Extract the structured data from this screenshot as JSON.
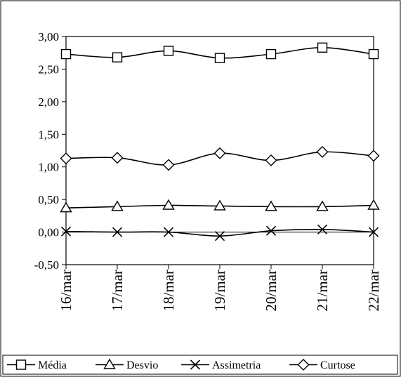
{
  "chart_data": {
    "type": "line",
    "title": "",
    "xlabel": "",
    "ylabel": "",
    "categories": [
      "16/mar",
      "17/mar",
      "18/mar",
      "19/mar",
      "20/mar",
      "21/mar",
      "22/mar"
    ],
    "ylim": [
      -0.5,
      3.0
    ],
    "yticks": [
      -0.5,
      0.0,
      0.5,
      1.0,
      1.5,
      2.0,
      2.5,
      3.0
    ],
    "ytick_labels": [
      "-0,50",
      "0,00",
      "0,50",
      "1,00",
      "1,50",
      "2,00",
      "2,50",
      "3,00"
    ],
    "grid": false,
    "legend_position": "bottom",
    "series": [
      {
        "name": "Média",
        "marker": "square",
        "color": "#000000",
        "values": [
          2.73,
          2.68,
          2.78,
          2.67,
          2.73,
          2.83,
          2.73
        ]
      },
      {
        "name": "Desvio",
        "marker": "triangle",
        "color": "#000000",
        "values": [
          0.37,
          0.39,
          0.41,
          0.4,
          0.39,
          0.39,
          0.41
        ]
      },
      {
        "name": "Assimetria",
        "marker": "x",
        "color": "#000000",
        "values": [
          0.01,
          0.0,
          0.0,
          -0.06,
          0.02,
          0.04,
          0.0
        ]
      },
      {
        "name": "Curtose",
        "marker": "diamond",
        "color": "#000000",
        "values": [
          1.13,
          1.14,
          1.03,
          1.21,
          1.1,
          1.23,
          1.17
        ]
      }
    ]
  }
}
